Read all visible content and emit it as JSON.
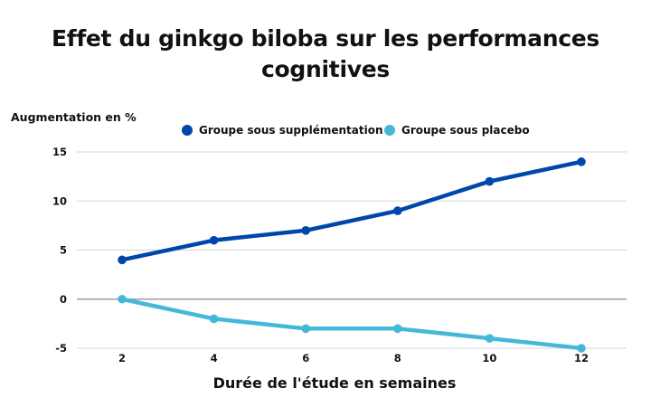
{
  "chart_data": {
    "type": "line",
    "title_lines": [
      "Effet du ginkgo biloba sur les performances",
      "cognitives"
    ],
    "ylabel": "Augmentation en %",
    "xlabel": "Durée de l'étude en semaines",
    "x": [
      2,
      4,
      6,
      8,
      10,
      12
    ],
    "x_tick_labels": [
      "2",
      "4",
      "6",
      "8",
      "10",
      "12"
    ],
    "y_ticks": [
      15,
      10,
      5,
      0,
      -5
    ],
    "y_tick_labels": [
      "15",
      "10",
      "5",
      "0",
      "-5"
    ],
    "ylim": [
      -5,
      15
    ],
    "xlim": [
      1,
      13
    ],
    "grid": true,
    "legend_position": "top-center",
    "series": [
      {
        "name": "Groupe sous supplémentation",
        "color": "#0047AB",
        "values": [
          4,
          6,
          7,
          9,
          12,
          14
        ]
      },
      {
        "name": "Groupe sous placebo",
        "color": "#45B8D9",
        "values": [
          0,
          -2,
          -3,
          -3,
          -4,
          -5
        ]
      }
    ]
  }
}
